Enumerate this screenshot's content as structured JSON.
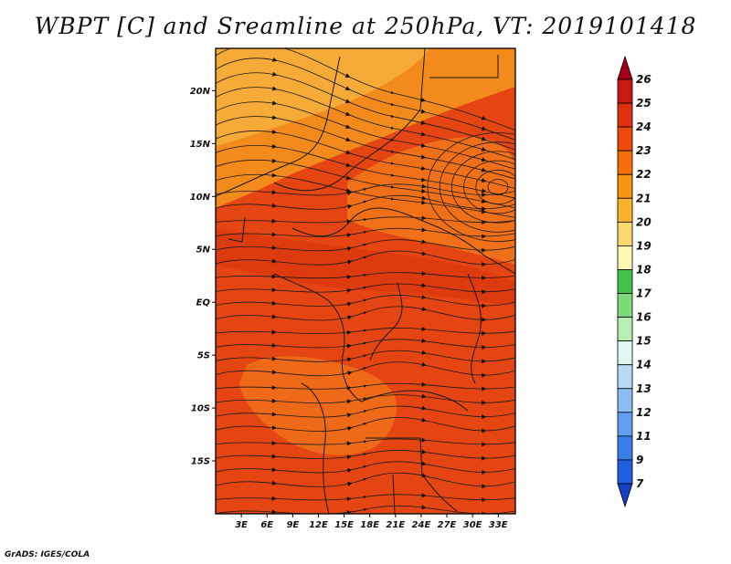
{
  "title": "WBPT [C] and Sreamline at 250hPa, VT: 2019101418",
  "footer": "GrADS: IGES/COLA",
  "map": {
    "lon_range": [
      0,
      35
    ],
    "lat_range": [
      -20,
      24
    ],
    "lat_ticks": [
      "20N",
      "15N",
      "10N",
      "5N",
      "EQ",
      "5S",
      "10S",
      "15S"
    ],
    "lon_ticks": [
      "3E",
      "6E",
      "9E",
      "12E",
      "15E",
      "18E",
      "21E",
      "24E",
      "27E",
      "30E",
      "33E"
    ],
    "field": "WBPT",
    "units": "C",
    "level": "250hPa"
  },
  "colorbar": {
    "levels": [
      "26",
      "25",
      "24",
      "23",
      "22",
      "21",
      "20",
      "19",
      "18",
      "17",
      "16",
      "15",
      "14",
      "13",
      "12",
      "11",
      "9",
      "7"
    ],
    "colors": [
      "#a50015",
      "#c81a10",
      "#e03010",
      "#ef4a0c",
      "#f66e0a",
      "#f7940e",
      "#f8b22c",
      "#fcd96e",
      "#fef8b2",
      "#45c249",
      "#7dda7a",
      "#b7efb0",
      "#e0f8f4",
      "#b7dbf6",
      "#8cbdf2",
      "#629ff0",
      "#3a80ec",
      "#1f5edf",
      "#1640c8"
    ]
  }
}
